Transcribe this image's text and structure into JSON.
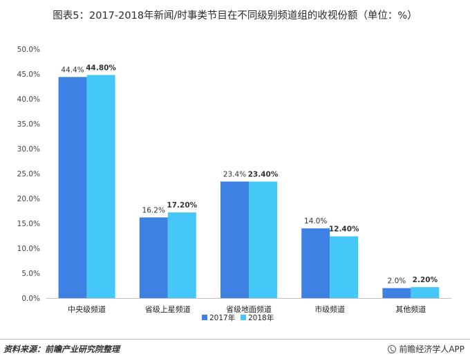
{
  "title": "图表5：2017-2018年新闻/时事类节目在不同级别频道组的收视份额（单位：%）",
  "source": "资料来源：前瞻产业研究院整理",
  "brand": "前瞻经济学人APP",
  "colors": {
    "series_2017": "#3d82e3",
    "series_2018": "#45c8f8"
  },
  "chart_data": {
    "type": "bar",
    "title": "图表5：2017-2018年新闻/时事类节目在不同级别频道组的收视份额（单位：%）",
    "categories": [
      "中央级频道",
      "省级上星频道",
      "省级地面频道",
      "市级频道",
      "其他频道"
    ],
    "series": [
      {
        "name": "2017年",
        "values": [
          44.4,
          16.2,
          23.4,
          14.0,
          2.0
        ],
        "labels": [
          "44.4%",
          "16.2%",
          "23.4%",
          "14.0%",
          "2.0%"
        ]
      },
      {
        "name": "2018年",
        "values": [
          44.8,
          17.2,
          23.4,
          12.4,
          2.2
        ],
        "labels": [
          "44.80%",
          "17.20%",
          "23.40%",
          "12.40%",
          "2.20%"
        ]
      }
    ],
    "ylim": [
      0,
      50
    ],
    "ytick_labels": [
      "0.0%",
      "5.0%",
      "10.0%",
      "15.0%",
      "20.0%",
      "25.0%",
      "30.0%",
      "35.0%",
      "40.0%",
      "45.0%",
      "50.0%"
    ],
    "xlabel": "",
    "ylabel": "",
    "grid": false,
    "legend_position": "bottom"
  }
}
